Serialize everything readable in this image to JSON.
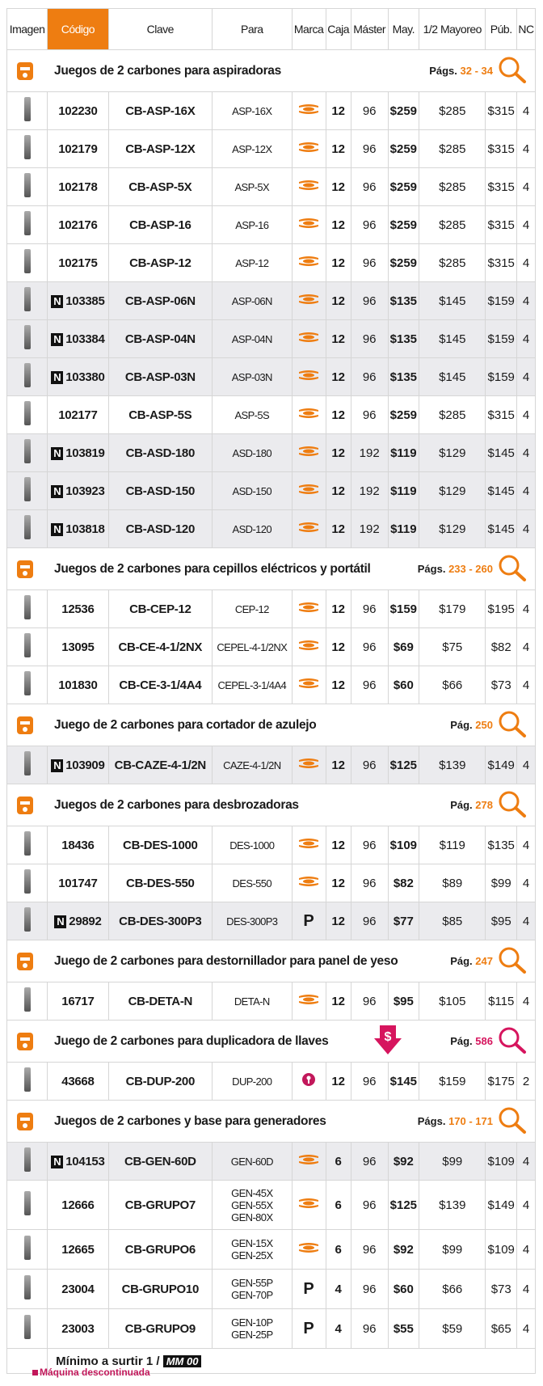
{
  "headers": [
    "Imagen",
    "Código",
    "Clave",
    "Para",
    "Marca",
    "Caja",
    "Máster",
    "May.",
    "1/2 Mayoreo",
    "Púb.",
    "NC"
  ],
  "colors": {
    "accent": "#ee7d11",
    "pink": "#d6155e",
    "gray_row": "#ebebee"
  },
  "sections": [
    {
      "title": "Juegos de 2 carbones para aspiradoras",
      "pages_label": "Págs.",
      "pages": "32 - 34",
      "icon": "vacuum-icon",
      "items": [
        [
          "",
          "102230",
          "CB-ASP-16X",
          [
            "ASP-16X"
          ],
          "truper",
          "12",
          "96",
          "$259",
          "$285",
          "$315",
          "4"
        ],
        [
          "",
          "102179",
          "CB-ASP-12X",
          [
            "ASP-12X"
          ],
          "truper",
          "12",
          "96",
          "$259",
          "$285",
          "$315",
          "4"
        ],
        [
          "",
          "102178",
          "CB-ASP-5X",
          [
            "ASP-5X"
          ],
          "truper",
          "12",
          "96",
          "$259",
          "$285",
          "$315",
          "4"
        ],
        [
          "",
          "102176",
          "CB-ASP-16",
          [
            "ASP-16"
          ],
          "truper",
          "12",
          "96",
          "$259",
          "$285",
          "$315",
          "4"
        ],
        [
          "",
          "102175",
          "CB-ASP-12",
          [
            "ASP-12"
          ],
          "truper",
          "12",
          "96",
          "$259",
          "$285",
          "$315",
          "4"
        ],
        [
          "N",
          "103385",
          "CB-ASP-06N",
          [
            "ASP-06N"
          ],
          "truper",
          "12",
          "96",
          "$135",
          "$145",
          "$159",
          "4"
        ],
        [
          "N",
          "103384",
          "CB-ASP-04N",
          [
            "ASP-04N"
          ],
          "truper",
          "12",
          "96",
          "$135",
          "$145",
          "$159",
          "4"
        ],
        [
          "N",
          "103380",
          "CB-ASP-03N",
          [
            "ASP-03N"
          ],
          "truper",
          "12",
          "96",
          "$135",
          "$145",
          "$159",
          "4"
        ],
        [
          "",
          "102177",
          "CB-ASP-5S",
          [
            "ASP-5S"
          ],
          "truper",
          "12",
          "96",
          "$259",
          "$285",
          "$315",
          "4"
        ],
        [
          "N",
          "103819",
          "CB-ASD-180",
          [
            "ASD-180"
          ],
          "truper",
          "12",
          "192",
          "$119",
          "$129",
          "$145",
          "4"
        ],
        [
          "N",
          "103923",
          "CB-ASD-150",
          [
            "ASD-150"
          ],
          "truper",
          "12",
          "192",
          "$119",
          "$129",
          "$145",
          "4"
        ],
        [
          "N",
          "103818",
          "CB-ASD-120",
          [
            "ASD-120"
          ],
          "truper",
          "12",
          "192",
          "$119",
          "$129",
          "$145",
          "4"
        ]
      ]
    },
    {
      "title": "Juegos de 2 carbones para cepillos eléctricos y portátil",
      "pages_label": "Págs.",
      "pages": "233 - 260",
      "icon": "planer-icon",
      "items": [
        [
          "",
          "12536",
          "CB-CEP-12",
          [
            "CEP-12"
          ],
          "truper",
          "12",
          "96",
          "$159",
          "$179",
          "$195",
          "4"
        ],
        [
          "",
          "13095",
          "CB-CE-4-1/2NX",
          [
            "CEPEL-4-1/2NX"
          ],
          "truper",
          "12",
          "96",
          "$69",
          "$75",
          "$82",
          "4"
        ],
        [
          "",
          "101830",
          "CB-CE-3-1/4A4",
          [
            "CEPEL-3-1/4A4"
          ],
          "truper",
          "12",
          "96",
          "$60",
          "$66",
          "$73",
          "4"
        ]
      ]
    },
    {
      "title": "Juego de 2 carbones para cortador de azulejo",
      "pages_label": "Pág.",
      "pages": "250",
      "icon": "tile-cutter-icon",
      "items": [
        [
          "N",
          "103909",
          "CB-CAZE-4-1/2N",
          [
            "CAZE-4-1/2N"
          ],
          "truper",
          "12",
          "96",
          "$125",
          "$139",
          "$149",
          "4"
        ]
      ]
    },
    {
      "title": "Juegos de 2 carbones para desbrozadoras",
      "pages_label": "Pág.",
      "pages": "278",
      "icon": "trimmer-icon",
      "items": [
        [
          "",
          "18436",
          "CB-DES-1000",
          [
            "DES-1000"
          ],
          "truper",
          "12",
          "96",
          "$109",
          "$119",
          "$135",
          "4"
        ],
        [
          "",
          "101747",
          "CB-DES-550",
          [
            "DES-550"
          ],
          "truper",
          "12",
          "96",
          "$82",
          "$89",
          "$99",
          "4"
        ],
        [
          "N",
          "29892",
          "CB-DES-300P3",
          [
            "DES-300P3"
          ],
          "P",
          "12",
          "96",
          "$77",
          "$85",
          "$95",
          "4"
        ]
      ]
    },
    {
      "title": "Juego de 2 carbones para destornillador para panel de yeso",
      "pages_label": "Pág.",
      "pages": "247",
      "icon": "drill-icon",
      "items": [
        [
          "",
          "16717",
          "CB-DETA-N",
          [
            "DETA-N"
          ],
          "truper",
          "12",
          "96",
          "$95",
          "$105",
          "$115",
          "4"
        ]
      ]
    },
    {
      "title": "Juego de 2 carbones para duplicadora de llaves",
      "pages_label": "Pág.",
      "pages": "586",
      "icon": "key-duplicator-icon",
      "pink": true,
      "items": [
        [
          "",
          "43668",
          "CB-DUP-200",
          [
            "DUP-200"
          ],
          "keyhole",
          "12",
          "96",
          "$145",
          "$159",
          "$175",
          "2"
        ]
      ]
    },
    {
      "title": "Juegos de 2 carbones y base para generadores",
      "pages_label": "Págs.",
      "pages": "170 - 171",
      "icon": "generator-icon",
      "items": [
        [
          "N",
          "104153",
          "CB-GEN-60D",
          [
            "GEN-60D"
          ],
          "truper",
          "6",
          "96",
          "$92",
          "$99",
          "$109",
          "4"
        ],
        [
          "",
          "12666",
          "CB-GRUPO7",
          [
            "GEN-45X",
            "GEN-55X",
            "GEN-80X"
          ],
          "truper",
          "6",
          "96",
          "$125",
          "$139",
          "$149",
          "4"
        ],
        [
          "",
          "12665",
          "CB-GRUPO6",
          [
            "GEN-15X",
            "GEN-25X"
          ],
          "truper",
          "6",
          "96",
          "$92",
          "$99",
          "$109",
          "4"
        ],
        [
          "",
          "23004",
          "CB-GRUPO10",
          [
            "GEN-55P",
            "GEN-70P"
          ],
          "P",
          "4",
          "96",
          "$60",
          "$66",
          "$73",
          "4"
        ],
        [
          "",
          "23003",
          "CB-GRUPO9",
          [
            "GEN-10P",
            "GEN-25P"
          ],
          "P",
          "4",
          "96",
          "$55",
          "$59",
          "$65",
          "4"
        ]
      ]
    }
  ],
  "footer": {
    "text": "Mínimo a surtir 1 /",
    "badge": "MM 00"
  },
  "legend": "Máquina descontinuada"
}
